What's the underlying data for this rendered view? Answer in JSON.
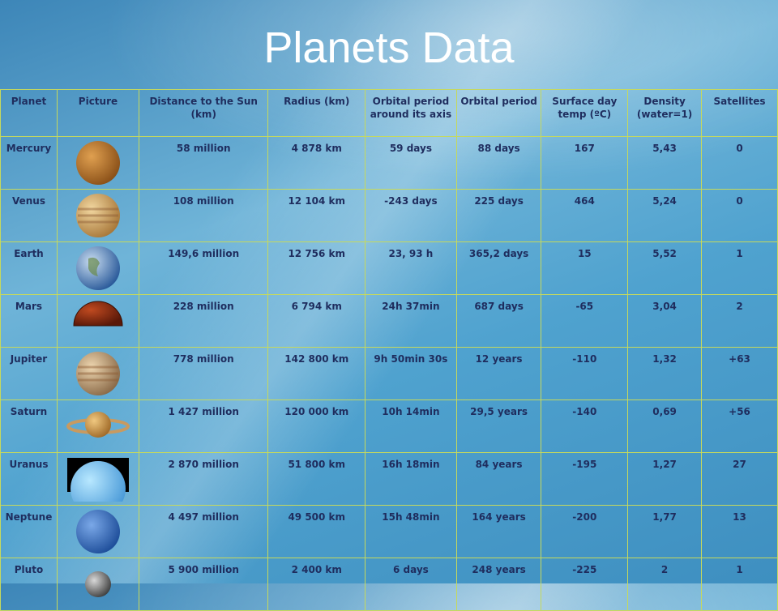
{
  "title": "Planets Data",
  "table": {
    "header": [
      "Planet",
      "Picture",
      "Distance to the Sun (km)",
      "Radius (km)",
      "Orbital period around its axis",
      "Orbital period",
      "Surface day temp (ºC)",
      "Density (water=1)",
      "Satellites"
    ],
    "rows": [
      [
        "Mercury",
        "58 million",
        "4 878 km",
        "59 days",
        "88 days",
        "167",
        "5,43",
        "0"
      ],
      [
        "Venus",
        "108 million",
        "12 104 km",
        "-243 days",
        "225 days",
        "464",
        "5,24",
        "0"
      ],
      [
        "Earth",
        "149,6 million",
        "12 756 km",
        "23, 93 h",
        "365,2 days",
        "15",
        "5,52",
        "1"
      ],
      [
        "Mars",
        "228 million",
        "6 794 km",
        "24h 37min",
        "687 days",
        "-65",
        "3,04",
        "2"
      ],
      [
        "Jupiter",
        "778 million",
        "142 800 km",
        "9h 50min 30s",
        "12 years",
        "-110",
        "1,32",
        "+63"
      ],
      [
        "Saturn",
        "1 427 million",
        "120 000 km",
        "10h 14min",
        "29,5 years",
        "-140",
        "0,69",
        "+56"
      ],
      [
        "Uranus",
        "2 870 million",
        "51 800 km",
        "16h 18min",
        "84 years",
        "-195",
        "1,27",
        "27"
      ],
      [
        "Neptune",
        "4 497 million",
        "49 500 km",
        "15h 48min",
        "164 years",
        "-200",
        "1,77",
        "13"
      ],
      [
        "Pluto",
        "5 900 million",
        "2 400 km",
        "6 days",
        "248 years",
        "-225",
        "2",
        "1"
      ]
    ]
  }
}
